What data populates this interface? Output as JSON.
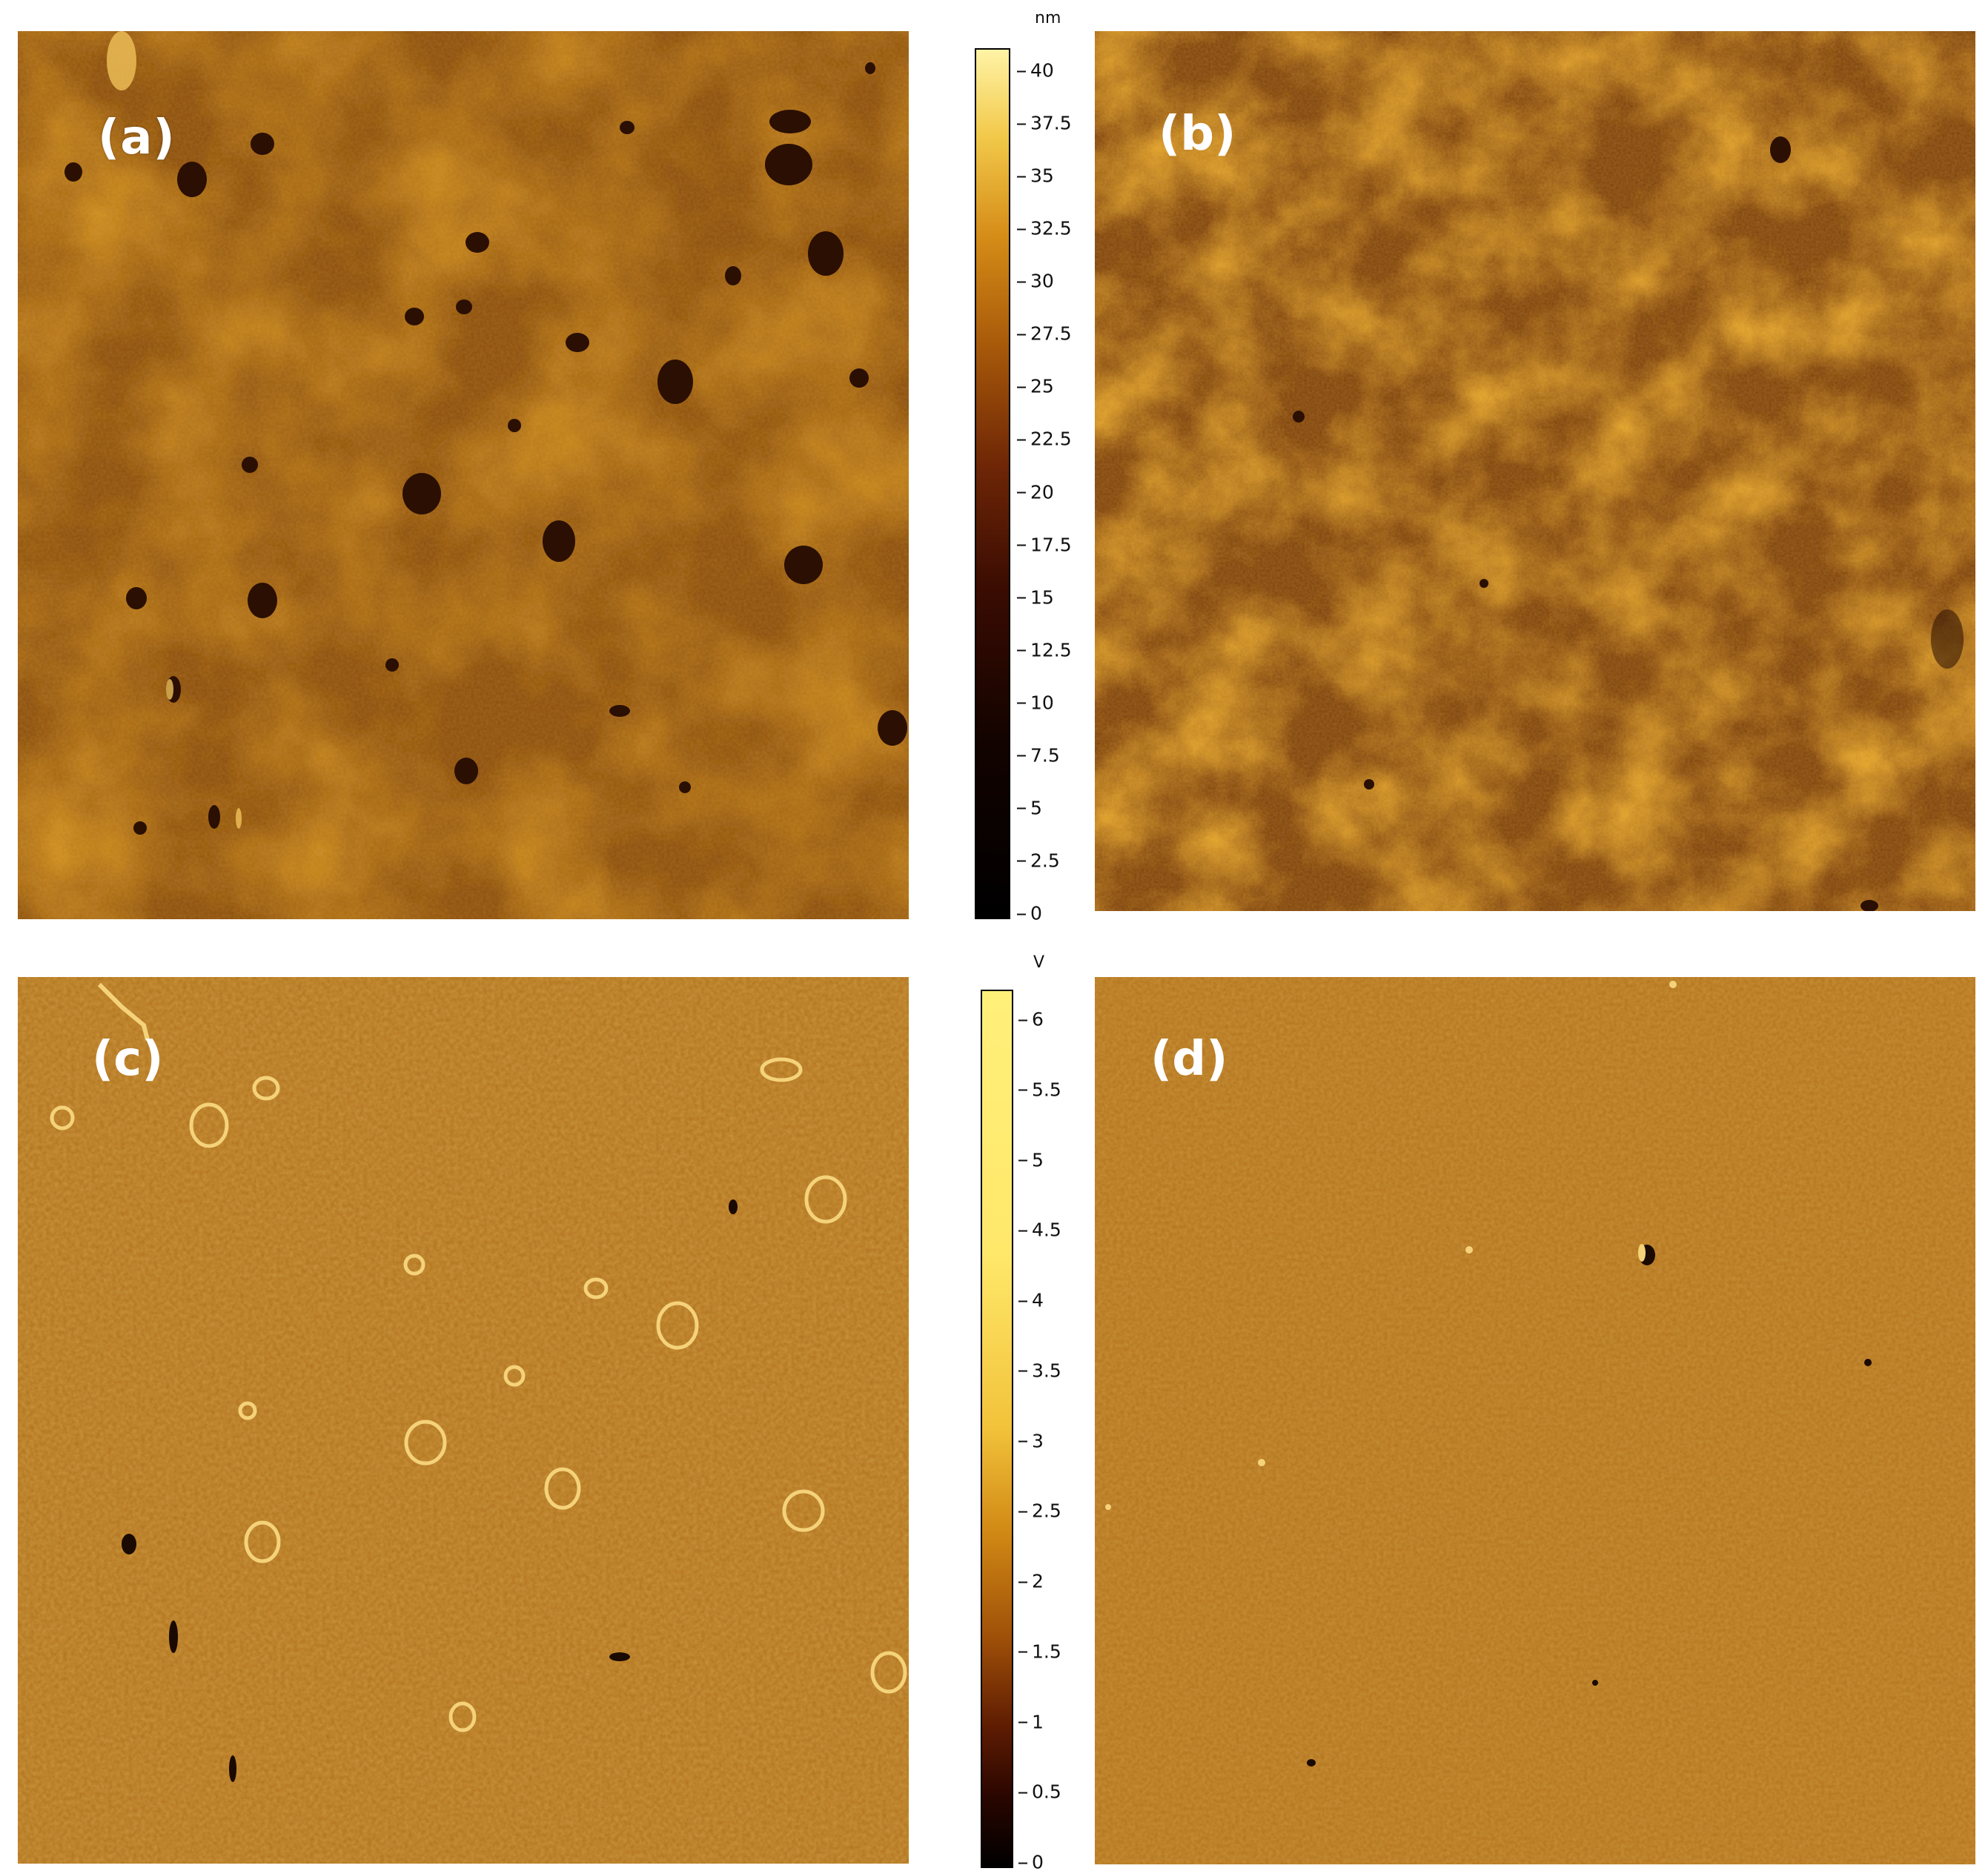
{
  "panels": [
    {
      "id": "a",
      "label": "(a)"
    },
    {
      "id": "b",
      "label": "(b)"
    },
    {
      "id": "c",
      "label": "(c)"
    },
    {
      "id": "d",
      "label": "(d)"
    }
  ],
  "colorbars": {
    "height": {
      "unit": "nm",
      "ticks": [
        "40",
        "37.5",
        "35",
        "32.5",
        "30",
        "27.5",
        "25",
        "22.5",
        "20",
        "17.5",
        "15",
        "12.5",
        "10",
        "7.5",
        "5",
        "2.5",
        "0"
      ]
    },
    "phase": {
      "unit": "V",
      "ticks": [
        "6",
        "5.5",
        "5",
        "4.5",
        "4",
        "3.5",
        "3",
        "2.5",
        "2",
        "1.5",
        "1",
        "0.5",
        "0"
      ]
    }
  },
  "colors": {
    "height_surface_base": "#9a5a10",
    "height_surface_high": "#e8a62a",
    "height_surface_low": "#5a2a05",
    "phase_surface": "#b9761a",
    "colorbar_top": "#fff3a6",
    "colorbar_mid": "#c47c12",
    "colorbar_low": "#5a1a00",
    "colorbar_bottom": "#000000",
    "label_text": "#ffffff"
  }
}
